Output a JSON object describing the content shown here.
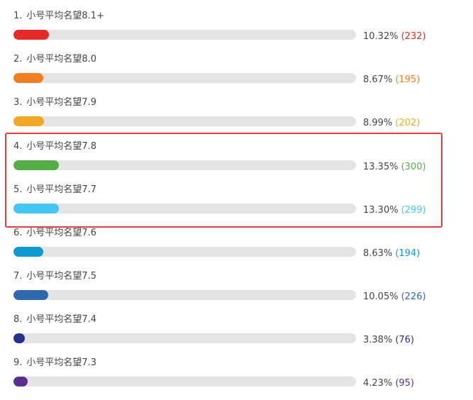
{
  "poll": {
    "options": [
      {
        "index": "1.",
        "label": "小号平均名望8.1+",
        "percent": "10.32%",
        "votes": "(232)",
        "fraction": 0.1032,
        "color": "#e32a26"
      },
      {
        "index": "2.",
        "label": "小号平均名望8.0",
        "percent": "8.67%",
        "votes": "(195)",
        "fraction": 0.0867,
        "color": "#f07f22"
      },
      {
        "index": "3.",
        "label": "小号平均名望7.9",
        "percent": "8.99%",
        "votes": "(202)",
        "fraction": 0.0899,
        "color": "#f2a825"
      },
      {
        "index": "4.",
        "label": "小号平均名望7.8",
        "percent": "13.35%",
        "votes": "(300)",
        "fraction": 0.1335,
        "color": "#55ad48"
      },
      {
        "index": "5.",
        "label": "小号平均名望7.7",
        "percent": "13.30%",
        "votes": "(299)",
        "fraction": 0.133,
        "color": "#45c6f0"
      },
      {
        "index": "6.",
        "label": "小号平均名望7.6",
        "percent": "8.63%",
        "votes": "(194)",
        "fraction": 0.0863,
        "color": "#0d9ad0"
      },
      {
        "index": "7.",
        "label": "小号平均名望7.5",
        "percent": "10.05%",
        "votes": "(226)",
        "fraction": 0.1005,
        "color": "#2f68ad"
      },
      {
        "index": "8.",
        "label": "小号平均名望7.4",
        "percent": "3.38%",
        "votes": "(76)",
        "fraction": 0.0338,
        "color": "#26318c"
      },
      {
        "index": "9.",
        "label": "小号平均名望7.3",
        "percent": "4.23%",
        "votes": "(95)",
        "fraction": 0.0423,
        "color": "#5a2e8c"
      }
    ],
    "highlight_color": "#e0403f"
  }
}
